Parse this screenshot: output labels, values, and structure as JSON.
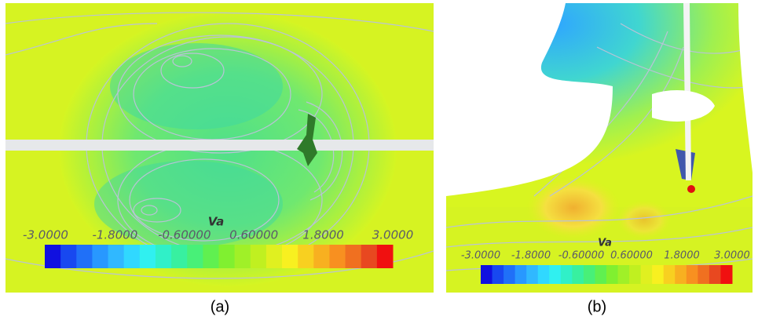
{
  "panels": [
    {
      "caption": "(a)",
      "colorbar": {
        "title": "Va",
        "ticks": [
          "-3.0000",
          "-1.8000",
          "-0.60000",
          "0.60000",
          "1.8000",
          "3.0000"
        ]
      }
    },
    {
      "caption": "(b)",
      "colorbar": {
        "title": "Va",
        "ticks": [
          "-3.0000",
          "-1.8000",
          "-0.60000",
          "0.60000",
          "1.8000",
          "3.0000"
        ]
      }
    }
  ]
}
